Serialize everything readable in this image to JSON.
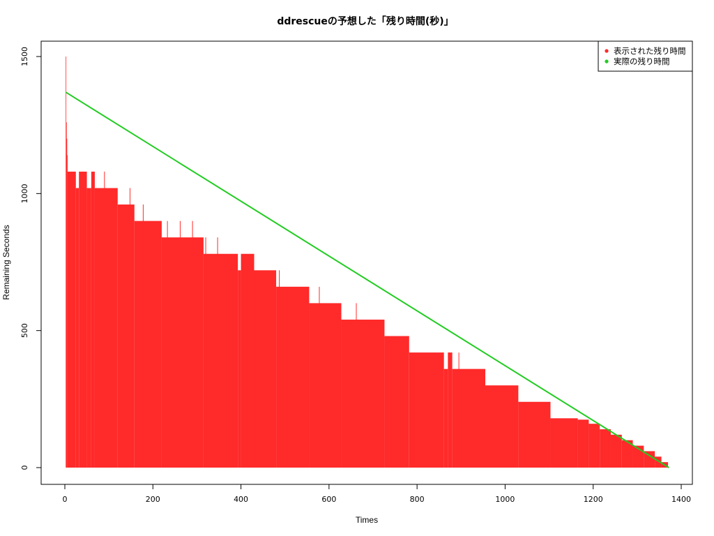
{
  "chart_data": {
    "type": "area",
    "title": "ddrescueの予想した「残り時間(秒)」",
    "xlabel": "Times",
    "ylabel": "Remaining Seconds",
    "xlim": [
      0,
      1400
    ],
    "ylim": [
      0,
      1500
    ],
    "x_ticks": [
      0,
      200,
      400,
      600,
      800,
      1000,
      1200,
      1400
    ],
    "y_ticks": [
      0,
      500,
      1000,
      1500
    ],
    "grid": false,
    "legend_position": "top-right",
    "series": [
      {
        "name": "表示された残り時間",
        "color": "#ff2a2a",
        "steps": [
          [
            2,
            1500
          ],
          [
            3,
            1260
          ],
          [
            4,
            1200
          ],
          [
            5,
            1140
          ],
          [
            6,
            1080
          ],
          [
            25,
            1020
          ],
          [
            32,
            1080
          ],
          [
            50,
            1020
          ],
          [
            60,
            1080
          ],
          [
            68,
            1020
          ],
          [
            120,
            960
          ],
          [
            158,
            900
          ],
          [
            220,
            840
          ],
          [
            315,
            780
          ],
          [
            393,
            720
          ],
          [
            400,
            780
          ],
          [
            430,
            720
          ],
          [
            480,
            660
          ],
          [
            555,
            600
          ],
          [
            628,
            540
          ],
          [
            726,
            480
          ],
          [
            782,
            420
          ],
          [
            861,
            360
          ],
          [
            870,
            420
          ],
          [
            880,
            360
          ],
          [
            955,
            300
          ],
          [
            1030,
            240
          ],
          [
            1103,
            180
          ],
          [
            1165,
            175
          ],
          [
            1190,
            160
          ],
          [
            1215,
            140
          ],
          [
            1240,
            120
          ],
          [
            1265,
            100
          ],
          [
            1290,
            80
          ],
          [
            1315,
            60
          ],
          [
            1340,
            40
          ],
          [
            1355,
            20
          ],
          [
            1370,
            0
          ]
        ],
        "spikes": [
          [
            90,
            1080
          ],
          [
            148,
            1020
          ],
          [
            178,
            960
          ],
          [
            233,
            900
          ],
          [
            262,
            900
          ],
          [
            290,
            900
          ],
          [
            320,
            840
          ],
          [
            347,
            840
          ],
          [
            487,
            720
          ],
          [
            578,
            660
          ],
          [
            662,
            600
          ],
          [
            895,
            420
          ]
        ]
      },
      {
        "name": "実際の残り時間",
        "color": "#22cc22",
        "points": [
          [
            2,
            1370
          ],
          [
            1372,
            0
          ]
        ]
      }
    ]
  }
}
